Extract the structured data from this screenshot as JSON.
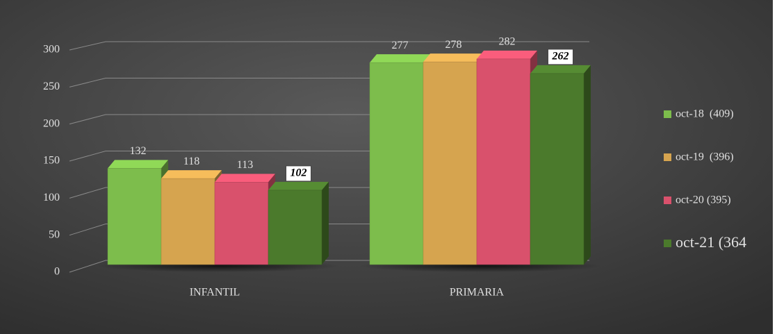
{
  "chart_data": {
    "type": "bar",
    "categories": [
      "INFANTIL",
      "PRIMARIA"
    ],
    "series": [
      {
        "name": "oct-18  (409)",
        "color": "#7dbd4c",
        "values": [
          132,
          277
        ]
      },
      {
        "name": "oct-19  (396)",
        "color": "#d6a44f",
        "values": [
          118,
          278
        ]
      },
      {
        "name": "oct-20 (395)",
        "color": "#d9516c",
        "values": [
          113,
          282
        ]
      },
      {
        "name": "oct-21 (364",
        "color": "#4b7a2c",
        "values": [
          102,
          262
        ]
      }
    ],
    "ylim": [
      0,
      300
    ],
    "yticks": [
      0,
      50,
      100,
      150,
      200,
      250,
      300
    ],
    "grid": true,
    "legend": "right"
  }
}
